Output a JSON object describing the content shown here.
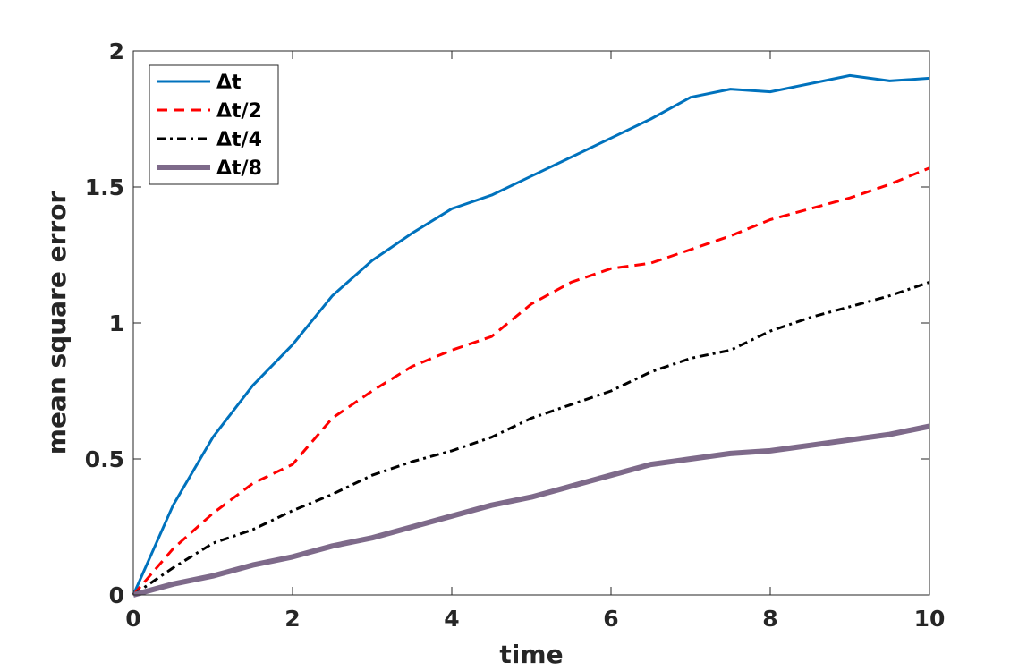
{
  "chart_data": {
    "type": "line",
    "xlabel": "time",
    "ylabel": "mean square error",
    "xlim": [
      0,
      10
    ],
    "ylim": [
      0,
      2
    ],
    "xticks": [
      "0",
      "2",
      "4",
      "6",
      "8",
      "10"
    ],
    "yticks": [
      "0",
      "0.5",
      "1",
      "1.5",
      "2"
    ],
    "legend_position": "top-left",
    "grid": false,
    "x": [
      0,
      0.5,
      1,
      1.5,
      2,
      2.5,
      3,
      3.5,
      4,
      4.5,
      5,
      5.5,
      6,
      6.5,
      7,
      7.5,
      8,
      8.5,
      9,
      9.5,
      10
    ],
    "series": [
      {
        "name": "Δt",
        "color": "#0072BD",
        "style": "solid",
        "values": [
          0,
          0.33,
          0.58,
          0.77,
          0.92,
          1.1,
          1.23,
          1.33,
          1.42,
          1.47,
          1.54,
          1.61,
          1.68,
          1.75,
          1.83,
          1.86,
          1.85,
          1.88,
          1.91,
          1.89,
          1.9
        ]
      },
      {
        "name": "Δt/2",
        "color": "#FF0000",
        "style": "dashed",
        "values": [
          0,
          0.17,
          0.3,
          0.41,
          0.48,
          0.65,
          0.75,
          0.84,
          0.9,
          0.95,
          1.07,
          1.15,
          1.2,
          1.22,
          1.27,
          1.32,
          1.38,
          1.42,
          1.46,
          1.51,
          1.57
        ]
      },
      {
        "name": "Δt/4",
        "color": "#000000",
        "style": "dashdot",
        "values": [
          0,
          0.1,
          0.19,
          0.24,
          0.31,
          0.37,
          0.44,
          0.49,
          0.53,
          0.58,
          0.65,
          0.7,
          0.75,
          0.82,
          0.87,
          0.9,
          0.97,
          1.02,
          1.06,
          1.1,
          1.15
        ]
      },
      {
        "name": "Δt/8",
        "color": "#7E6A8A",
        "style": "thick",
        "values": [
          0,
          0.04,
          0.07,
          0.11,
          0.14,
          0.18,
          0.21,
          0.25,
          0.29,
          0.33,
          0.36,
          0.4,
          0.44,
          0.48,
          0.5,
          0.52,
          0.53,
          0.55,
          0.57,
          0.59,
          0.62
        ]
      }
    ]
  }
}
